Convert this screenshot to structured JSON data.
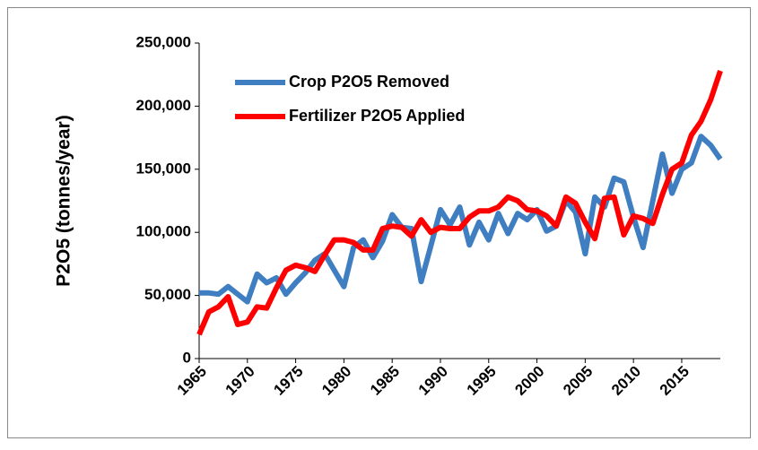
{
  "chart_data": {
    "type": "line",
    "ylabel": "P2O5 (tonnes/year)",
    "x": [
      1965,
      1966,
      1967,
      1968,
      1969,
      1970,
      1971,
      1972,
      1973,
      1974,
      1975,
      1976,
      1977,
      1978,
      1979,
      1980,
      1981,
      1982,
      1983,
      1984,
      1985,
      1986,
      1987,
      1988,
      1989,
      1990,
      1991,
      1992,
      1993,
      1994,
      1995,
      1996,
      1997,
      1998,
      1999,
      2000,
      2001,
      2002,
      2003,
      2004,
      2005,
      2006,
      2007,
      2008,
      2009,
      2010,
      2011,
      2012,
      2013,
      2014,
      2015,
      2016,
      2017,
      2018,
      2019
    ],
    "series": [
      {
        "name": "Crop P2O5 Removed",
        "color": "#3f7fc1",
        "values": [
          52000,
          52000,
          51000,
          57000,
          51000,
          45000,
          67000,
          60000,
          64000,
          51000,
          60000,
          68000,
          78000,
          83000,
          70000,
          57000,
          88000,
          94000,
          80000,
          93000,
          114000,
          104000,
          103000,
          61000,
          89000,
          118000,
          106000,
          120000,
          90000,
          108000,
          94000,
          115000,
          99000,
          115000,
          110000,
          118000,
          101000,
          105000,
          125000,
          116000,
          83000,
          128000,
          120000,
          143000,
          140000,
          112000,
          88000,
          125000,
          162000,
          131000,
          150000,
          155000,
          176000,
          169000,
          158000
        ]
      },
      {
        "name": "Fertilizer P2O5 Applied",
        "color": "#ff0000",
        "values": [
          19000,
          37000,
          41000,
          49000,
          27000,
          29000,
          41000,
          40000,
          56000,
          70000,
          74000,
          72000,
          69000,
          82000,
          94000,
          94000,
          92000,
          86000,
          86000,
          103000,
          105000,
          104000,
          97000,
          110000,
          100000,
          104000,
          103000,
          103000,
          112000,
          117000,
          117000,
          120000,
          128000,
          125000,
          118000,
          117000,
          113000,
          105000,
          128000,
          123000,
          108000,
          95000,
          127000,
          128000,
          98000,
          113000,
          111000,
          107000,
          130000,
          150000,
          155000,
          177000,
          188000,
          205000,
          228000
        ]
      }
    ],
    "xlim": [
      1965,
      2019
    ],
    "xticks": [
      1965,
      1970,
      1975,
      1980,
      1985,
      1990,
      1995,
      2000,
      2005,
      2010,
      2015
    ],
    "ylim": [
      0,
      250000
    ],
    "yticks": [
      0,
      {
        "value": 50000,
        "label": "50,000"
      },
      {
        "value": 100000,
        "label": "100,000"
      },
      {
        "value": 150000,
        "label": "150,000"
      },
      {
        "value": 200000,
        "label": "200,000"
      },
      {
        "value": 250000,
        "label": "250,000"
      }
    ],
    "legend": "upper left"
  }
}
